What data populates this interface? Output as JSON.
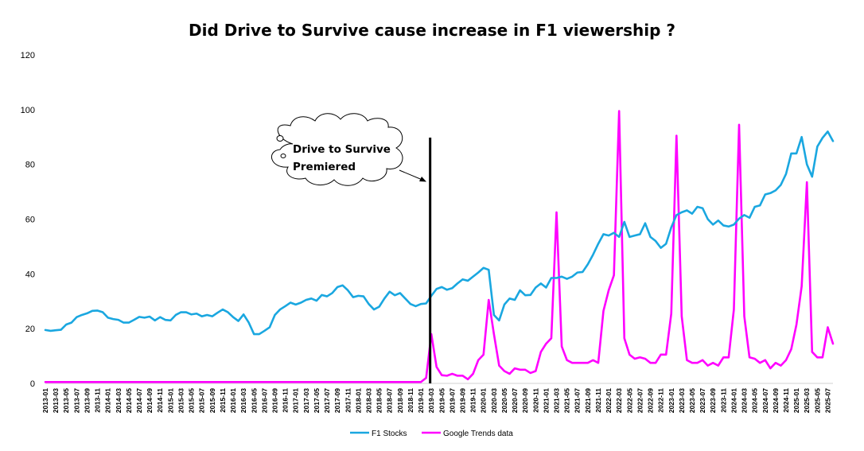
{
  "chart_data": {
    "type": "line",
    "title": "Did Drive to Survive cause increase in F1 viewership ?",
    "ylim": [
      0,
      120
    ],
    "yticks": [
      0,
      20,
      40,
      60,
      80,
      100,
      120
    ],
    "legend_position": "bottom",
    "grid": false,
    "annotation": {
      "text_line1": "Drive to Survive",
      "text_line2": "Premiered",
      "at": "2019-03",
      "shape": "cloud callout with vertical black marker line"
    },
    "x": [
      "2013-01",
      "2013-02",
      "2013-03",
      "2013-04",
      "2013-05",
      "2013-06",
      "2013-07",
      "2013-08",
      "2013-09",
      "2013-10",
      "2013-11",
      "2013-12",
      "2014-01",
      "2014-02",
      "2014-03",
      "2014-04",
      "2014-05",
      "2014-06",
      "2014-07",
      "2014-08",
      "2014-09",
      "2014-10",
      "2014-11",
      "2014-12",
      "2015-01",
      "2015-02",
      "2015-03",
      "2015-04",
      "2015-05",
      "2015-06",
      "2015-07",
      "2015-08",
      "2015-09",
      "2015-10",
      "2015-11",
      "2015-12",
      "2016-01",
      "2016-02",
      "2016-03",
      "2016-04",
      "2016-05",
      "2016-06",
      "2016-07",
      "2016-08",
      "2016-09",
      "2016-10",
      "2016-11",
      "2016-12",
      "2017-01",
      "2017-02",
      "2017-03",
      "2017-04",
      "2017-05",
      "2017-06",
      "2017-07",
      "2017-08",
      "2017-09",
      "2017-10",
      "2017-11",
      "2017-12",
      "2018-01",
      "2018-02",
      "2018-03",
      "2018-04",
      "2018-05",
      "2018-06",
      "2018-07",
      "2018-08",
      "2018-09",
      "2018-10",
      "2018-11",
      "2018-12",
      "2019-01",
      "2019-02",
      "2019-03",
      "2019-04",
      "2019-05",
      "2019-06",
      "2019-07",
      "2019-08",
      "2019-09",
      "2019-10",
      "2019-11",
      "2019-12",
      "2020-01",
      "2020-02",
      "2020-03",
      "2020-04",
      "2020-05",
      "2020-06",
      "2020-07",
      "2020-08",
      "2020-09",
      "2020-10",
      "2020-11",
      "2020-12",
      "2021-01",
      "2021-02",
      "2021-03",
      "2021-04",
      "2021-05",
      "2021-06",
      "2021-07",
      "2021-08",
      "2021-09",
      "2021-10",
      "2021-11",
      "2021-12",
      "2022-01",
      "2022-02",
      "2022-03",
      "2022-04",
      "2022-05",
      "2022-06",
      "2022-07",
      "2022-08",
      "2022-09",
      "2022-10",
      "2022-11",
      "2022-12",
      "2023-01",
      "2023-02",
      "2023-03",
      "2023-04",
      "2023-05",
      "2023-06",
      "2023-07",
      "2023-08",
      "2023-09",
      "2023-10",
      "2023-11",
      "2023-12",
      "2024-01",
      "2024-02",
      "2024-03",
      "2024-04",
      "2024-05",
      "2024-06",
      "2024-07",
      "2024-08",
      "2024-09",
      "2024-10",
      "2024-11",
      "2024-12",
      "2025-01",
      "2025-02",
      "2025-03",
      "2025-04",
      "2025-05",
      "2025-06",
      "2025-07",
      "2025-08"
    ],
    "xtick_labels": [
      "2013-01",
      "2013-03",
      "2013-05",
      "2013-07",
      "2013-09",
      "2013-11",
      "2014-01",
      "2014-03",
      "2014-05",
      "2014-07",
      "2014-09",
      "2014-11",
      "2015-01",
      "2015-03",
      "2015-05",
      "2015-07",
      "2015-09",
      "2015-11",
      "2016-01",
      "2016-03",
      "2016-05",
      "2016-07",
      "2016-09",
      "2016-11",
      "2017-01",
      "2017-03",
      "2017-05",
      "2017-07",
      "2017-09",
      "2017-11",
      "2018-01",
      "2018-03",
      "2018-05",
      "2018-07",
      "2018-09",
      "2018-11",
      "2019-01",
      "2019-03",
      "2019-05",
      "2019-07",
      "2019-09",
      "2019-11",
      "2020-01",
      "2020-03",
      "2020-05",
      "2020-07",
      "2020-09",
      "2020-11",
      "2021-01",
      "2021-03",
      "2021-05",
      "2021-07",
      "2021-09",
      "2021-11",
      "2022-01",
      "2022-03",
      "2022-05",
      "2022-07",
      "2022-09",
      "2022-11",
      "2023-01",
      "2023-03",
      "2023-05",
      "2023-07",
      "2023-09",
      "2023-11",
      "2024-01",
      "2024-03",
      "2024-05",
      "2024-07",
      "2024-09",
      "2024-11",
      "2025-01",
      "2025-03",
      "2025-05",
      "2025-07"
    ],
    "series": [
      {
        "name": "F1 Stocks",
        "color": "#1AA7E0",
        "values": [
          19.5,
          19.2,
          19.4,
          19.6,
          21.5,
          22.2,
          24.2,
          25,
          25.6,
          26.5,
          26.6,
          26,
          24,
          23.5,
          23.2,
          22.2,
          22.2,
          23.2,
          24.3,
          24,
          24.4,
          23,
          24.2,
          23.2,
          23,
          25,
          26,
          26,
          25.2,
          25.5,
          24.5,
          25,
          24.5,
          25.8,
          27,
          26,
          24.2,
          22.8,
          25.2,
          22.2,
          18,
          18,
          19.2,
          20.5,
          25,
          27,
          28.2,
          29.5,
          28.8,
          29.5,
          30.5,
          31,
          30.2,
          32.3,
          31.8,
          33,
          35.2,
          35.8,
          34,
          31.5,
          32,
          31.8,
          29,
          27,
          28,
          31,
          33.5,
          32.2,
          33,
          31,
          29,
          28.2,
          29,
          29.2,
          32,
          34.5,
          35.2,
          34.2,
          34.8,
          36.5,
          38,
          37.5,
          39,
          40.5,
          42.2,
          41.5,
          25,
          23,
          28.8,
          31,
          30.5,
          34,
          32.2,
          32.3,
          35,
          36.5,
          35,
          38.5,
          38.5,
          39,
          38.2,
          39,
          40.5,
          40.7,
          43.5,
          47,
          51,
          54.5,
          54,
          55,
          53.5,
          59,
          53.5,
          54,
          54.5,
          58.5,
          53.5,
          52,
          49.5,
          51,
          57,
          61.5,
          62.5,
          63.2,
          62,
          64.5,
          64,
          60,
          58,
          59.5,
          57.7,
          57.3,
          58,
          60.2,
          61.5,
          60.5,
          64.5,
          65,
          69,
          69.5,
          70.5,
          72.5,
          76.5,
          84,
          84,
          90,
          80,
          75.5,
          86.5,
          89.7,
          92,
          88.5
        ]
      },
      {
        "name": "Google Trends data",
        "color": "#FF00FF",
        "values": [
          0.5,
          0.5,
          0.5,
          0.5,
          0.5,
          0.5,
          0.5,
          0.5,
          0.5,
          0.5,
          0.5,
          0.5,
          0.5,
          0.5,
          0.5,
          0.5,
          0.5,
          0.5,
          0.5,
          0.5,
          0.5,
          0.5,
          0.5,
          0.5,
          0.5,
          0.5,
          0.5,
          0.5,
          0.5,
          0.5,
          0.5,
          0.5,
          0.5,
          0.5,
          0.5,
          0.5,
          0.5,
          0.5,
          0.5,
          0.5,
          0.5,
          0.5,
          0.5,
          0.5,
          0.5,
          0.5,
          0.5,
          0.5,
          0.5,
          0.5,
          0.5,
          0.5,
          0.5,
          0.5,
          0.5,
          0.5,
          0.5,
          0.5,
          0.5,
          0.5,
          0.5,
          0.5,
          0.5,
          0.5,
          0.5,
          0.5,
          0.5,
          0.5,
          0.5,
          0.5,
          0.5,
          0.5,
          0.5,
          2,
          18,
          6,
          3,
          2.8,
          3.5,
          2.8,
          2.8,
          1.5,
          3.5,
          8.5,
          10.5,
          30.5,
          18,
          6.5,
          4.5,
          3.5,
          5.5,
          5,
          5,
          3.8,
          4.5,
          11.5,
          14.5,
          16.5,
          62.5,
          13.5,
          8.5,
          7.5,
          7.5,
          7.5,
          7.5,
          8.5,
          7.5,
          26.5,
          34,
          39.5,
          99.5,
          16.5,
          10.5,
          9,
          9.5,
          9,
          7.5,
          7.5,
          10.5,
          10.5,
          25.5,
          90.5,
          24.5,
          8.5,
          7.5,
          7.5,
          8.5,
          6.5,
          7.5,
          6.5,
          9.5,
          9.5,
          27,
          94.5,
          24.5,
          9.5,
          9,
          7.5,
          8.5,
          5.5,
          7.5,
          6.5,
          8.5,
          12.5,
          21.5,
          35.5,
          73.5,
          11.5,
          9.5,
          9.5,
          20.5,
          14.5
        ]
      }
    ]
  }
}
